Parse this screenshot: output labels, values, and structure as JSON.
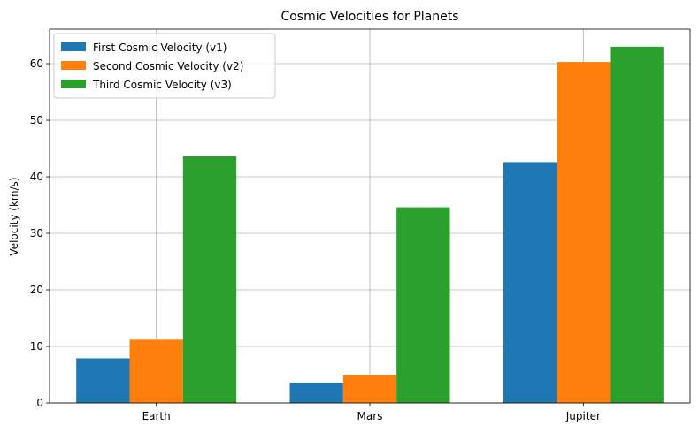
{
  "chart_data": {
    "type": "bar",
    "title": "Cosmic Velocities for Planets",
    "xlabel": "",
    "ylabel": "Velocity (km/s)",
    "categories": [
      "Earth",
      "Mars",
      "Jupiter"
    ],
    "series": [
      {
        "name": "First Cosmic Velocity (v1)",
        "color": "#1f77b4",
        "values": [
          7.9,
          3.6,
          42.6
        ]
      },
      {
        "name": "Second Cosmic Velocity (v2)",
        "color": "#ff7f0e",
        "values": [
          11.2,
          5.0,
          60.3
        ]
      },
      {
        "name": "Third Cosmic Velocity (v3)",
        "color": "#2ca02c",
        "values": [
          43.6,
          34.6,
          63.0
        ]
      }
    ],
    "ylim": [
      0,
      66.1
    ],
    "yticks": [
      0,
      10,
      20,
      30,
      40,
      50,
      60
    ],
    "grid": true,
    "legend_position": "upper-left"
  }
}
